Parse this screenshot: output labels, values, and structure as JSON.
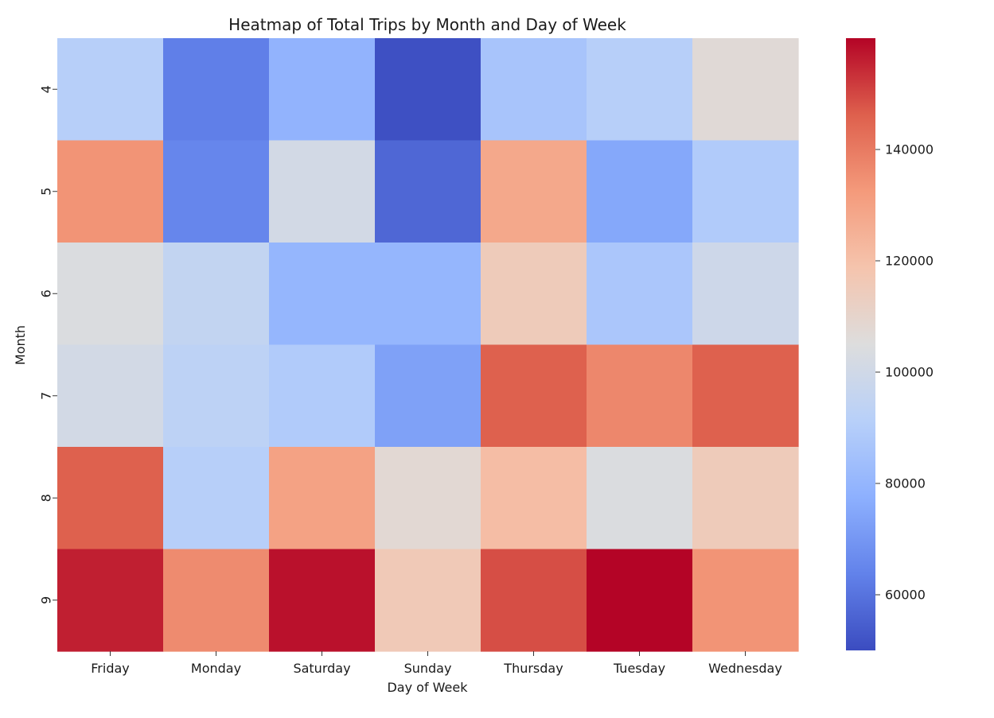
{
  "chart_data": {
    "type": "heatmap",
    "title": "Heatmap of Total Trips by Month and Day of Week",
    "xlabel": "Day of Week",
    "ylabel": "Month",
    "x_categories": [
      "Friday",
      "Monday",
      "Saturday",
      "Sunday",
      "Thursday",
      "Tuesday",
      "Wednesday"
    ],
    "y_categories": [
      "4",
      "5",
      "6",
      "7",
      "8",
      "9"
    ],
    "values": [
      [
        91000,
        63000,
        79000,
        51000,
        86000,
        91000,
        107000
      ],
      [
        134000,
        65000,
        101000,
        57000,
        128000,
        75000,
        89000
      ],
      [
        104000,
        95000,
        80000,
        80000,
        115000,
        87000,
        99000
      ],
      [
        101000,
        93000,
        89000,
        73000,
        146000,
        137000,
        146000
      ],
      [
        146000,
        91000,
        130000,
        108000,
        121000,
        104000,
        115000
      ],
      [
        156000,
        136000,
        158000,
        116000,
        149000,
        160000,
        134000
      ]
    ],
    "colormap": "coolwarm",
    "color_range": [
      50000,
      160000
    ],
    "colorbar_ticks": [
      60000,
      80000,
      100000,
      120000,
      140000
    ]
  }
}
